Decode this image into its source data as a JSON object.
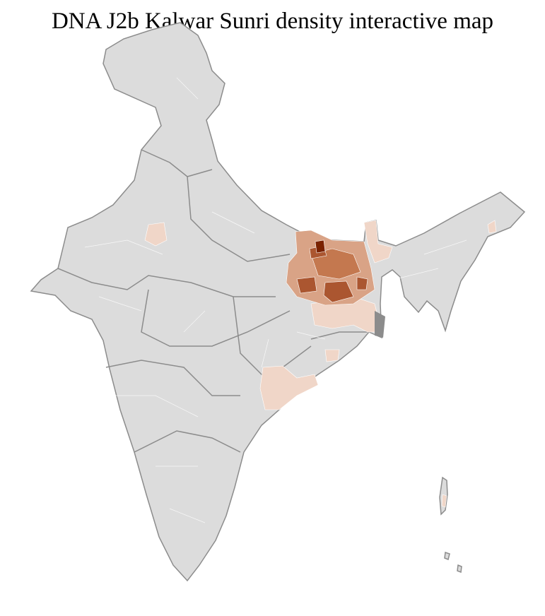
{
  "title": "DNA J2b Kalwar Sunri density interactive map",
  "map": {
    "country": "India",
    "colors": {
      "base": "#dcdcdc",
      "border": "#8c8c8c",
      "district_lines": "#ffffff",
      "low": "#f0d6c8",
      "medium_low": "#d9a386",
      "medium": "#c4784f",
      "high": "#ab5630",
      "max": "#7a2200"
    }
  }
}
